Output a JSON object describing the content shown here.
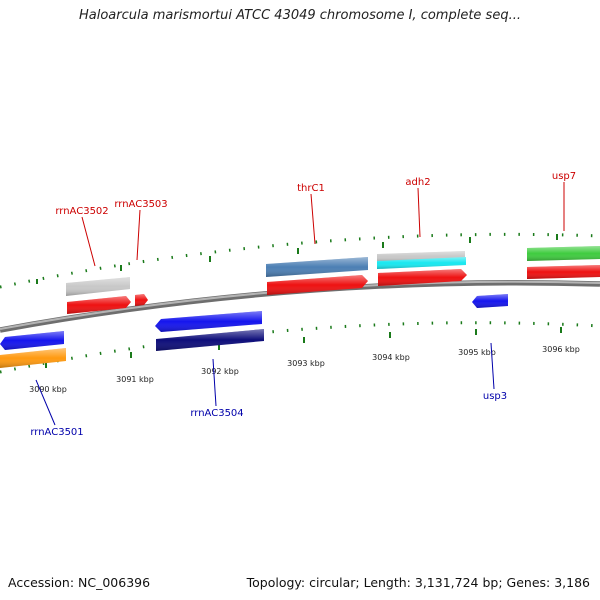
{
  "title": "Haloarcula marismortui ATCC 43049 chromosome I, complete seq...",
  "footer": {
    "accession": "Accession: NC_006396",
    "summary": "Topology: circular; Length: 3,131,724 bp; Genes: 3,186"
  },
  "scale_ticks": [
    "3090 kbp",
    "3091 kbp",
    "3092 kbp",
    "3093 kbp",
    "3094 kbp",
    "3095 kbp",
    "3096 kbp"
  ],
  "colors": {
    "forward_label": "#cc0000",
    "reverse_label": "#0000aa",
    "backbone": "#8c8c8c",
    "tick_marks": "#1a7a1a",
    "red": "#ee1111",
    "blue": "#1414ee",
    "navy": "#0d0d7a",
    "orange": "#ff9a10",
    "gray": "#c8c8c8",
    "steelblue": "#4c7fb4",
    "cyan": "#18e8f0",
    "green": "#3fcc3f"
  },
  "genes_forward": [
    "rrnAC3502",
    "rrnAC3503",
    "thrC1",
    "adh2",
    "usp7"
  ],
  "genes_reverse": [
    "rrnAC3501",
    "rrnAC3504",
    "usp3"
  ]
}
